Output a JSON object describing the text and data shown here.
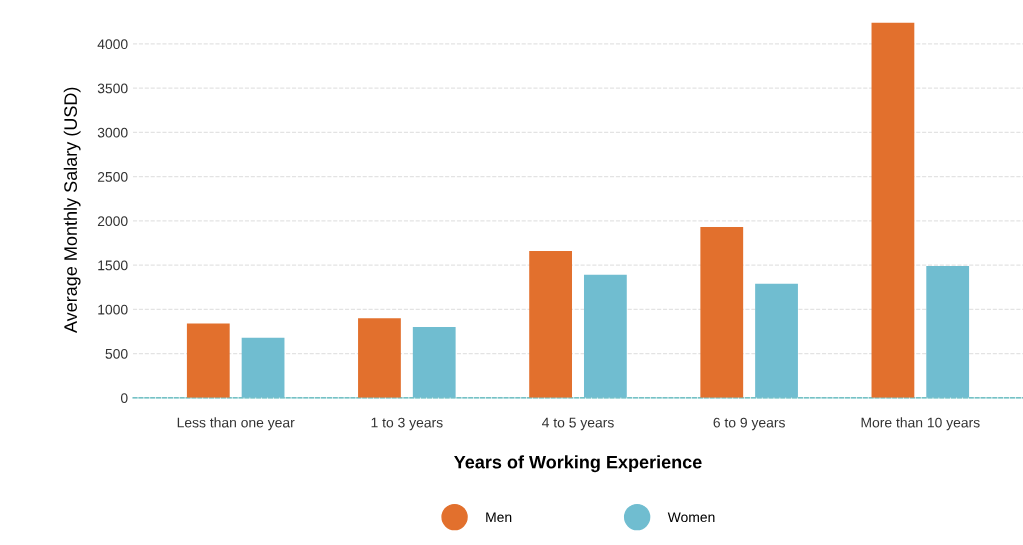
{
  "chart_data": {
    "type": "bar",
    "xlabel": "Years of Working Experience",
    "ylabel": "Average Monthly Salary (USD)",
    "categories": [
      "Less than one year",
      "1 to 3 years",
      "4 to 5 years",
      "6 to 9 years",
      "More than 10 years"
    ],
    "series": [
      {
        "name": "Men",
        "color": "#e2702d",
        "values": [
          840,
          900,
          1660,
          1930,
          4240
        ]
      },
      {
        "name": "Women",
        "color": "#70bdd0",
        "values": [
          680,
          800,
          1390,
          1290,
          1490
        ]
      }
    ],
    "ylim": [
      0,
      4250
    ],
    "yticks": [
      0,
      500,
      1000,
      1500,
      2000,
      2500,
      3000,
      3500,
      4000
    ],
    "grid": "y",
    "legend": "bottom"
  }
}
